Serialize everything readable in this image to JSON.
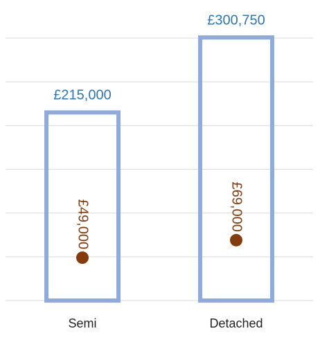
{
  "chart_data": {
    "type": "bar",
    "categories": [
      "Semi",
      "Detached"
    ],
    "series": [
      {
        "color": "#8faadc",
        "values": [
          215000,
          300750
        ],
        "value_labels": [
          "£215,000",
          "£300,750"
        ],
        "label_color": "#2e75b6"
      },
      {
        "type": "dot",
        "color": "#843c0c",
        "values": [
          49000,
          69000
        ],
        "value_labels": [
          "£49,000",
          "£69,000"
        ]
      }
    ],
    "ylim": [
      0,
      300000
    ],
    "yticks": [
      0,
      50000,
      100000,
      150000,
      200000,
      250000,
      300000
    ],
    "grid": true
  }
}
